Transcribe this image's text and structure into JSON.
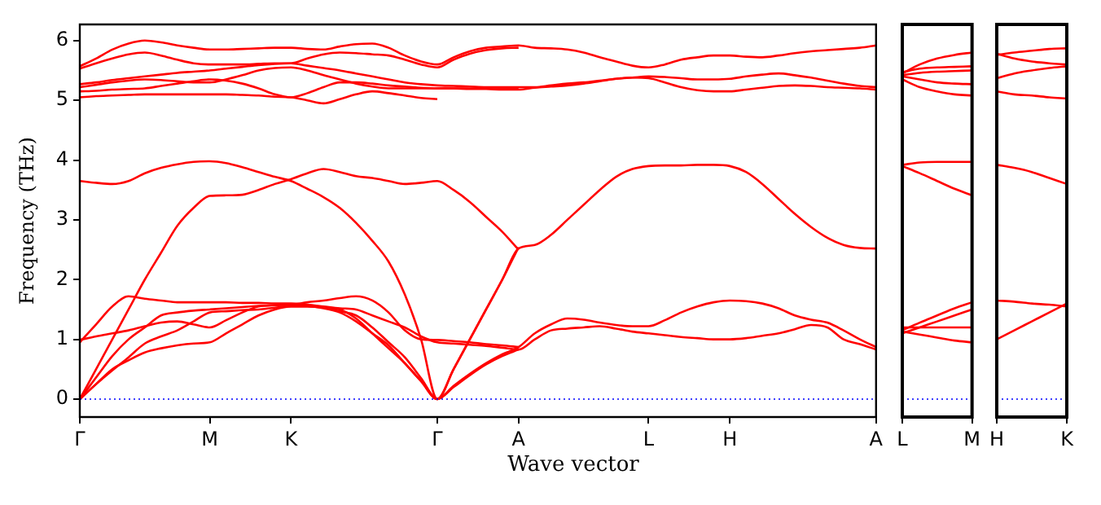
{
  "chart_data": [
    {
      "type": "line",
      "ylabel": "Frequency (THz)",
      "xlabel": "Wave vector",
      "ylim": [
        -0.3,
        6.27
      ],
      "yticks": [
        0,
        1,
        2,
        3,
        4,
        5,
        6
      ],
      "marker": "none",
      "grid": false,
      "legend": false,
      "ref_lines": [
        {
          "axis": "y",
          "value": 0,
          "color": "#0000ff",
          "line_style": "dotted"
        }
      ],
      "categories": [
        "Γ",
        null,
        null,
        null,
        null,
        null,
        null,
        null,
        "M",
        null,
        null,
        null,
        null,
        "K",
        null,
        null,
        null,
        null,
        null,
        null,
        null,
        null,
        "Γ",
        null,
        null,
        null,
        null,
        "A",
        null,
        null,
        null,
        null,
        null,
        null,
        null,
        "L",
        null,
        null,
        null,
        null,
        "H",
        null,
        null,
        null,
        null,
        null,
        null,
        null,
        null,
        "A"
      ],
      "series": [
        {
          "color": "#ff0000",
          "values": [
            0,
            0.25,
            0.5,
            0.65,
            0.78,
            0.85,
            0.9,
            0.93,
            0.95,
            1.1,
            1.25,
            1.4,
            1.5,
            1.55,
            1.55,
            1.52,
            1.45,
            1.3,
            1.1,
            0.9,
            0.6,
            0.3,
            0,
            0.22,
            0.42,
            0.6,
            0.75,
            0.87,
            1.1,
            1.25,
            1.35,
            1.33,
            1.28,
            1.24,
            1.22,
            1.22,
            1.32,
            1.45,
            1.55,
            1.62,
            1.65,
            1.64,
            1.6,
            1.52,
            1.4,
            1.33,
            1.28,
            1.15,
            1.0,
            0.87
          ]
        },
        {
          "color": "#ff0000",
          "values": [
            0,
            0.25,
            0.48,
            0.7,
            0.93,
            1.05,
            1.15,
            1.3,
            1.45,
            1.47,
            1.49,
            1.5,
            1.53,
            1.55,
            1.55,
            1.53,
            1.5,
            1.35,
            1.1,
            0.85,
            0.6,
            0.3,
            0,
            0.2,
            0.4,
            0.58,
            0.72,
            0.83,
            null,
            null,
            null,
            null,
            null,
            null,
            null,
            null,
            null,
            null,
            null,
            null,
            null,
            null,
            null,
            null,
            null,
            null,
            null,
            null,
            null,
            null
          ]
        },
        {
          "color": "#ff0000",
          "values": [
            0,
            0.36,
            0.72,
            1.0,
            1.2,
            1.4,
            1.45,
            1.48,
            1.5,
            1.52,
            1.54,
            1.56,
            1.57,
            1.58,
            1.57,
            1.53,
            1.47,
            1.4,
            1.2,
            0.95,
            0.7,
            0.35,
            0,
            0.5,
            1.0,
            1.5,
            2.0,
            2.52,
            2.58,
            2.75,
            3.0,
            3.25,
            3.5,
            3.72,
            3.85,
            3.9,
            3.91,
            3.91,
            3.92,
            3.92,
            3.9,
            3.8,
            3.6,
            3.35,
            3.1,
            2.88,
            2.7,
            2.58,
            2.53,
            2.52
          ]
        },
        {
          "color": "#ff0000",
          "values": [
            0.99,
            1.05,
            1.1,
            1.15,
            1.22,
            1.28,
            1.3,
            1.25,
            1.2,
            1.32,
            1.45,
            1.55,
            1.57,
            1.58,
            1.62,
            1.65,
            1.69,
            1.72,
            1.65,
            1.45,
            1.15,
            1.0,
            0.99,
            0.97,
            0.95,
            0.92,
            0.9,
            0.87,
            null,
            null,
            null,
            null,
            null,
            null,
            null,
            null,
            null,
            null,
            null,
            null,
            null,
            null,
            null,
            null,
            null,
            null,
            null,
            null,
            null,
            null
          ]
        },
        {
          "color": "#ff0000",
          "values": [
            0.95,
            1.25,
            1.55,
            1.72,
            1.68,
            1.65,
            1.62,
            1.62,
            1.62,
            1.62,
            1.61,
            1.61,
            1.6,
            1.6,
            1.58,
            1.55,
            1.52,
            1.5,
            1.4,
            1.3,
            1.2,
            1.05,
            0.95,
            0.93,
            0.91,
            0.89,
            0.86,
            0.83,
            1.0,
            1.15,
            1.18,
            1.2,
            1.22,
            1.18,
            1.13,
            1.1,
            1.07,
            1.04,
            1.02,
            1.0,
            1.0,
            1.02,
            1.06,
            1.1,
            1.17,
            1.24,
            1.2,
            1.0,
            0.92,
            0.83
          ]
        },
        {
          "color": "#ff0000",
          "values": [
            0,
            0.5,
            1.0,
            1.5,
            2.0,
            2.45,
            2.9,
            3.2,
            3.4,
            3.41,
            3.42,
            3.5,
            3.6,
            3.68,
            3.78,
            3.85,
            3.8,
            3.73,
            3.7,
            3.65,
            3.6,
            3.62,
            3.65,
            3.5,
            3.3,
            3.05,
            2.8,
            2.5,
            null,
            null,
            null,
            null,
            null,
            null,
            null,
            null,
            null,
            null,
            null,
            null,
            null,
            null,
            null,
            null,
            null,
            null,
            null,
            null,
            null,
            null
          ]
        },
        {
          "color": "#ff0000",
          "values": [
            3.65,
            3.62,
            3.6,
            3.65,
            3.78,
            3.87,
            3.93,
            3.97,
            3.98,
            3.95,
            3.88,
            3.8,
            3.72,
            3.65,
            3.52,
            3.38,
            3.2,
            2.95,
            2.65,
            2.3,
            1.75,
            1.0,
            0,
            0.5,
            1.0,
            1.5,
            2.0,
            2.54,
            null,
            null,
            null,
            null,
            null,
            null,
            null,
            null,
            null,
            null,
            null,
            null,
            null,
            null,
            null,
            null,
            null,
            null,
            null,
            null,
            null,
            null
          ]
        },
        {
          "color": "#ff0000",
          "values": [
            5.57,
            5.7,
            5.85,
            5.95,
            6.0,
            5.97,
            5.92,
            5.88,
            5.85,
            5.85,
            5.86,
            5.87,
            5.88,
            5.88,
            5.86,
            5.85,
            5.9,
            5.94,
            5.95,
            5.88,
            5.75,
            5.65,
            5.6,
            5.72,
            5.82,
            5.88,
            5.9,
            5.92,
            5.88,
            5.87,
            5.85,
            5.8,
            5.72,
            5.65,
            5.58,
            5.55,
            5.6,
            5.68,
            5.72,
            5.75,
            5.75,
            5.73,
            5.72,
            5.75,
            5.79,
            5.82,
            5.84,
            5.86,
            5.88,
            5.92
          ]
        },
        {
          "color": "#ff0000",
          "values": [
            5.53,
            5.62,
            5.7,
            5.77,
            5.8,
            5.75,
            5.68,
            5.62,
            5.6,
            5.6,
            5.6,
            5.61,
            5.62,
            5.62,
            5.7,
            5.77,
            5.8,
            5.79,
            5.77,
            5.75,
            5.68,
            5.6,
            5.55,
            5.68,
            5.78,
            5.84,
            5.87,
            5.88,
            null,
            null,
            null,
            null,
            null,
            null,
            null,
            null,
            null,
            null,
            null,
            null,
            null,
            null,
            null,
            null,
            null,
            null,
            null,
            null,
            null,
            null
          ]
        },
        {
          "color": "#ff0000",
          "values": [
            5.27,
            5.3,
            5.34,
            5.37,
            5.4,
            5.43,
            5.46,
            5.48,
            5.5,
            5.53,
            5.56,
            5.59,
            5.61,
            5.62,
            5.58,
            5.54,
            5.5,
            5.45,
            5.4,
            5.35,
            5.3,
            5.27,
            5.25,
            5.24,
            5.23,
            5.22,
            5.22,
            5.22,
            5.22,
            5.25,
            5.28,
            5.3,
            5.33,
            5.36,
            5.38,
            5.4,
            5.39,
            5.37,
            5.35,
            5.35,
            5.36,
            5.4,
            5.43,
            5.45,
            5.42,
            5.38,
            5.33,
            5.28,
            5.24,
            5.22
          ]
        },
        {
          "color": "#ff0000",
          "values": [
            5.22,
            5.26,
            5.3,
            5.33,
            5.35,
            5.34,
            5.32,
            5.3,
            5.3,
            5.35,
            5.42,
            5.5,
            5.54,
            5.55,
            5.5,
            5.42,
            5.35,
            5.28,
            5.23,
            5.2,
            5.2,
            5.2,
            5.2,
            5.2,
            5.2,
            5.2,
            5.2,
            5.2,
            null,
            null,
            null,
            null,
            null,
            null,
            null,
            null,
            null,
            null,
            null,
            null,
            null,
            null,
            null,
            null,
            null,
            null,
            null,
            null,
            null,
            null
          ]
        },
        {
          "color": "#ff0000",
          "values": [
            5.15,
            5.16,
            5.18,
            5.19,
            5.2,
            5.24,
            5.28,
            5.32,
            5.35,
            5.33,
            5.28,
            5.2,
            5.1,
            5.05,
            5.12,
            5.22,
            5.3,
            5.3,
            5.28,
            5.25,
            5.23,
            5.21,
            5.2,
            5.2,
            5.19,
            5.19,
            5.18,
            5.18,
            5.21,
            5.23,
            5.25,
            5.28,
            5.32,
            5.36,
            5.38,
            5.37,
            5.3,
            5.22,
            5.17,
            5.15,
            5.15,
            5.18,
            5.21,
            5.24,
            5.25,
            5.24,
            5.22,
            5.21,
            5.2,
            5.18
          ]
        },
        {
          "color": "#ff0000",
          "values": [
            5.05,
            5.07,
            5.08,
            5.09,
            5.1,
            5.1,
            5.1,
            5.1,
            5.1,
            5.1,
            5.09,
            5.08,
            5.06,
            5.05,
            5.0,
            4.95,
            5.02,
            5.1,
            5.15,
            5.12,
            5.08,
            5.04,
            5.02,
            null,
            null,
            null,
            null,
            null,
            null,
            null,
            null,
            null,
            null,
            null,
            null,
            null,
            null,
            null,
            null,
            null,
            null,
            null,
            null,
            null,
            null,
            null,
            null,
            null,
            null,
            null
          ]
        }
      ]
    },
    {
      "type": "line",
      "ylim": [
        -0.3,
        6.27
      ],
      "categories": [
        "L",
        null,
        null,
        null,
        "M"
      ],
      "tick_labels": "x",
      "marker": "none",
      "grid": false,
      "legend": false,
      "ref_lines": [
        {
          "axis": "y",
          "value": 0,
          "color": "#0000ff",
          "line_style": "dotted"
        }
      ],
      "series": [
        {
          "color": "#ff0000",
          "values": [
            5.45,
            5.6,
            5.7,
            5.76,
            5.8
          ]
        },
        {
          "color": "#ff0000",
          "values": [
            5.47,
            5.53,
            5.55,
            5.56,
            5.57
          ]
        },
        {
          "color": "#ff0000",
          "values": [
            5.42,
            5.46,
            5.48,
            5.49,
            5.5
          ]
        },
        {
          "color": "#ff0000",
          "values": [
            5.4,
            5.35,
            5.3,
            5.28,
            5.27
          ]
        },
        {
          "color": "#ff0000",
          "values": [
            5.35,
            5.22,
            5.15,
            5.1,
            5.08
          ]
        },
        {
          "color": "#ff0000",
          "values": [
            3.92,
            3.96,
            3.97,
            3.97,
            3.97
          ]
        },
        {
          "color": "#ff0000",
          "values": [
            3.9,
            3.78,
            3.65,
            3.52,
            3.41
          ]
        },
        {
          "color": "#ff0000",
          "values": [
            1.15,
            1.28,
            1.4,
            1.52,
            1.62
          ]
        },
        {
          "color": "#ff0000",
          "values": [
            1.1,
            1.2,
            1.3,
            1.4,
            1.5
          ]
        },
        {
          "color": "#ff0000",
          "values": [
            1.2,
            1.2,
            1.2,
            1.2,
            1.2
          ]
        },
        {
          "color": "#ff0000",
          "values": [
            1.13,
            1.08,
            1.03,
            0.98,
            0.95
          ]
        }
      ]
    },
    {
      "type": "line",
      "ylim": [
        -0.3,
        6.27
      ],
      "categories": [
        "H",
        null,
        null,
        null,
        "K"
      ],
      "tick_labels": "x",
      "marker": "none",
      "grid": false,
      "legend": false,
      "ref_lines": [
        {
          "axis": "y",
          "value": 0,
          "color": "#0000ff",
          "line_style": "dotted"
        }
      ],
      "series": [
        {
          "color": "#ff0000",
          "values": [
            5.76,
            5.8,
            5.83,
            5.86,
            5.87
          ]
        },
        {
          "color": "#ff0000",
          "values": [
            5.78,
            5.7,
            5.65,
            5.62,
            5.6
          ]
        },
        {
          "color": "#ff0000",
          "values": [
            5.37,
            5.45,
            5.5,
            5.54,
            5.57
          ]
        },
        {
          "color": "#ff0000",
          "values": [
            5.15,
            5.1,
            5.08,
            5.05,
            5.03
          ]
        },
        {
          "color": "#ff0000",
          "values": [
            3.92,
            3.87,
            3.8,
            3.7,
            3.6
          ]
        },
        {
          "color": "#ff0000",
          "values": [
            1.65,
            1.63,
            1.6,
            1.58,
            1.55
          ]
        },
        {
          "color": "#ff0000",
          "values": [
            1.0,
            1.15,
            1.3,
            1.45,
            1.6
          ]
        }
      ]
    }
  ]
}
